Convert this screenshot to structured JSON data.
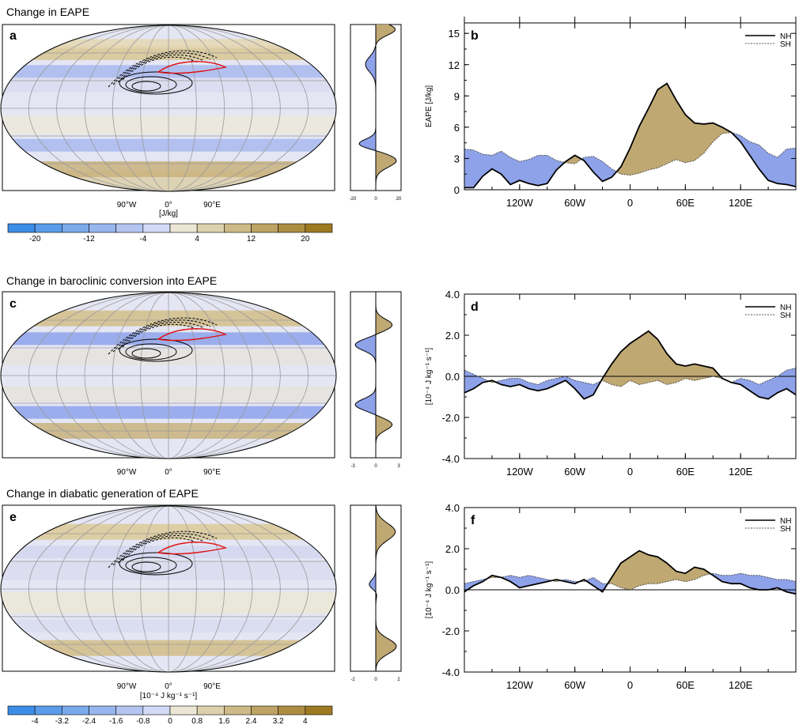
{
  "figure": {
    "rows": [
      {
        "title": "Change in EAPE",
        "map_letter": "a",
        "map_lon_labels": [
          "90°W",
          "0°",
          "90°E"
        ],
        "map_unit_label": "[J/kg]",
        "profile_ticks": [
          "-20",
          "0",
          "20"
        ],
        "line_letter": "b",
        "line_ylabel": "EAPE [J/kg]",
        "line_yticks": [
          "0",
          "3",
          "6",
          "9",
          "12",
          "15"
        ],
        "line_xticks": [
          "120W",
          "60W",
          "0",
          "60E",
          "120E"
        ],
        "legend": [
          "NH",
          "SH"
        ]
      },
      {
        "title": "Change in baroclinic conversion into EAPE",
        "map_letter": "c",
        "map_lon_labels": [
          "90°W",
          "0°",
          "90°E"
        ],
        "map_unit_label": "",
        "profile_ticks": [
          "-3",
          "0",
          "3"
        ],
        "line_letter": "d",
        "line_ylabel": "[10⁻⁴ J kg⁻¹ s⁻¹]",
        "line_yticks": [
          "-4.0",
          "-2.0",
          "0.0",
          "2.0",
          "4.0"
        ],
        "line_xticks": [
          "120W",
          "60W",
          "0",
          "60E",
          "120E"
        ],
        "legend": [
          "NH",
          "SH"
        ]
      },
      {
        "title": "Change in diabatic generation of EAPE",
        "map_letter": "e",
        "map_lon_labels": [
          "90°W",
          "0°",
          "90°E"
        ],
        "map_unit_label": "[10⁻⁴ J kg⁻¹ s⁻¹]",
        "profile_ticks": [
          "-2",
          "0",
          "2"
        ],
        "line_letter": "f",
        "line_ylabel": "[10⁻⁴ J kg⁻¹ s⁻¹]",
        "line_yticks": [
          "-4.0",
          "-2.0",
          "0.0",
          "2.0",
          "4.0"
        ],
        "line_xticks": [
          "120W",
          "60W",
          "0",
          "60E",
          "120E"
        ],
        "legend": [
          "NH",
          "SH"
        ]
      }
    ],
    "colorbars": [
      {
        "labels": [
          "-20",
          "-12",
          "-4",
          "4",
          "12",
          "20"
        ]
      },
      {
        "labels": [
          "-4",
          "-3.2",
          "-2.4",
          "-1.6",
          "-0.8",
          "0",
          "0.8",
          "1.6",
          "2.4",
          "3.2",
          "4"
        ]
      }
    ],
    "colors": {
      "positive_fill": "#bfa872",
      "negative_fill": "#8ea2ea",
      "ocean_base": "#e4e6f4",
      "jet_brown": "#c9b17c",
      "jet_blue": "#a9b8ee",
      "contour_red": "#e01010",
      "contour_black": "#000000",
      "grid": "#9a9a9a"
    }
  },
  "chart_data": [
    {
      "panel": "b",
      "type": "area",
      "title": "",
      "xlabel": "",
      "ylabel": "EAPE [J/kg]",
      "xlim": [
        -180,
        180
      ],
      "ylim": [
        0,
        16
      ],
      "xticks": [
        "120W",
        "60W",
        "0",
        "60E",
        "120E"
      ],
      "legend_position": "top-right",
      "x": [
        -180,
        -170,
        -160,
        -150,
        -140,
        -130,
        -120,
        -110,
        -100,
        -90,
        -80,
        -70,
        -60,
        -50,
        -40,
        -30,
        -20,
        -10,
        0,
        10,
        20,
        30,
        40,
        50,
        60,
        70,
        80,
        90,
        100,
        110,
        120,
        130,
        140,
        150,
        160,
        170,
        180
      ],
      "series": [
        {
          "name": "NH",
          "style": "solid",
          "values": [
            0.2,
            0.2,
            1.3,
            2.0,
            1.5,
            0.5,
            0.9,
            0.6,
            0.4,
            0.6,
            1.9,
            2.7,
            3.3,
            2.8,
            1.7,
            0.8,
            1.2,
            2.2,
            4.0,
            6.1,
            7.8,
            9.6,
            10.2,
            8.6,
            7.2,
            6.4,
            6.3,
            6.4,
            6.0,
            5.5,
            4.6,
            3.3,
            2.0,
            0.9,
            0.6,
            0.5,
            0.3
          ]
        },
        {
          "name": "SH",
          "style": "dashed",
          "values": [
            3.9,
            3.8,
            3.4,
            3.3,
            3.7,
            3.1,
            2.7,
            2.9,
            3.3,
            3.3,
            2.8,
            2.6,
            2.5,
            3.1,
            3.2,
            2.7,
            2.0,
            1.5,
            1.4,
            1.6,
            1.9,
            2.1,
            2.5,
            2.9,
            2.6,
            2.8,
            3.5,
            4.6,
            5.4,
            5.5,
            5.2,
            4.6,
            4.3,
            3.5,
            3.1,
            3.9,
            4.0
          ]
        }
      ]
    },
    {
      "panel": "d",
      "type": "area",
      "title": "",
      "xlabel": "",
      "ylabel": "[10⁻⁴ J kg⁻¹ s⁻¹]",
      "xlim": [
        -180,
        180
      ],
      "ylim": [
        -4,
        4
      ],
      "xticks": [
        "120W",
        "60W",
        "0",
        "60E",
        "120E"
      ],
      "legend_position": "top-right",
      "x": [
        -180,
        -170,
        -160,
        -150,
        -140,
        -130,
        -120,
        -110,
        -100,
        -90,
        -80,
        -70,
        -60,
        -50,
        -40,
        -30,
        -20,
        -10,
        0,
        10,
        20,
        30,
        40,
        50,
        60,
        70,
        80,
        90,
        100,
        110,
        120,
        130,
        140,
        150,
        160,
        170,
        180
      ],
      "series": [
        {
          "name": "NH",
          "style": "solid",
          "values": [
            -0.8,
            -0.6,
            -0.3,
            -0.2,
            -0.4,
            -0.5,
            -0.4,
            -0.6,
            -0.7,
            -0.6,
            -0.4,
            -0.2,
            -0.6,
            -1.1,
            -0.9,
            -0.1,
            0.6,
            1.2,
            1.6,
            1.9,
            2.2,
            1.8,
            1.1,
            0.6,
            0.5,
            0.6,
            0.5,
            0.4,
            -0.1,
            -0.3,
            -0.4,
            -0.7,
            -1.0,
            -1.1,
            -0.8,
            -0.6,
            -0.9
          ]
        },
        {
          "name": "SH",
          "style": "dashed",
          "values": [
            0.3,
            0.1,
            -0.1,
            -0.3,
            -0.2,
            -0.1,
            -0.1,
            -0.3,
            -0.4,
            -0.2,
            -0.1,
            0.0,
            -0.2,
            -0.3,
            -0.4,
            -0.2,
            -0.4,
            -0.5,
            -0.2,
            -0.4,
            -0.3,
            -0.2,
            -0.4,
            -0.3,
            -0.1,
            -0.2,
            -0.1,
            0.0,
            -0.1,
            -0.3,
            -0.1,
            -0.2,
            -0.4,
            -0.2,
            0.0,
            0.3,
            0.4
          ]
        }
      ]
    },
    {
      "panel": "f",
      "type": "area",
      "title": "",
      "xlabel": "",
      "ylabel": "[10⁻⁴ J kg⁻¹ s⁻¹]",
      "xlim": [
        -180,
        180
      ],
      "ylim": [
        -4,
        4
      ],
      "xticks": [
        "120W",
        "60W",
        "0",
        "60E",
        "120E"
      ],
      "legend_position": "top-right",
      "x": [
        -180,
        -170,
        -160,
        -150,
        -140,
        -130,
        -120,
        -110,
        -100,
        -90,
        -80,
        -70,
        -60,
        -50,
        -40,
        -30,
        -20,
        -10,
        0,
        10,
        20,
        30,
        40,
        50,
        60,
        70,
        80,
        90,
        100,
        110,
        120,
        130,
        140,
        150,
        160,
        170,
        180
      ],
      "series": [
        {
          "name": "NH",
          "style": "solid",
          "values": [
            -0.1,
            0.2,
            0.4,
            0.7,
            0.6,
            0.4,
            0.1,
            0.2,
            0.3,
            0.4,
            0.5,
            0.4,
            0.3,
            0.5,
            0.2,
            -0.1,
            0.6,
            1.3,
            1.6,
            1.9,
            1.7,
            1.6,
            1.3,
            0.9,
            0.8,
            1.1,
            1.0,
            0.7,
            0.4,
            0.3,
            0.3,
            0.1,
            0.0,
            0.0,
            0.1,
            -0.1,
            -0.2
          ]
        },
        {
          "name": "SH",
          "style": "dashed",
          "values": [
            0.3,
            0.4,
            0.5,
            0.6,
            0.6,
            0.7,
            0.6,
            0.7,
            0.6,
            0.5,
            0.4,
            0.5,
            0.4,
            0.4,
            0.6,
            0.3,
            0.3,
            0.1,
            0.0,
            0.2,
            0.3,
            0.3,
            0.4,
            0.5,
            0.4,
            0.5,
            0.7,
            0.8,
            0.7,
            0.7,
            0.8,
            0.7,
            0.7,
            0.6,
            0.5,
            0.5,
            0.4
          ]
        }
      ]
    }
  ]
}
